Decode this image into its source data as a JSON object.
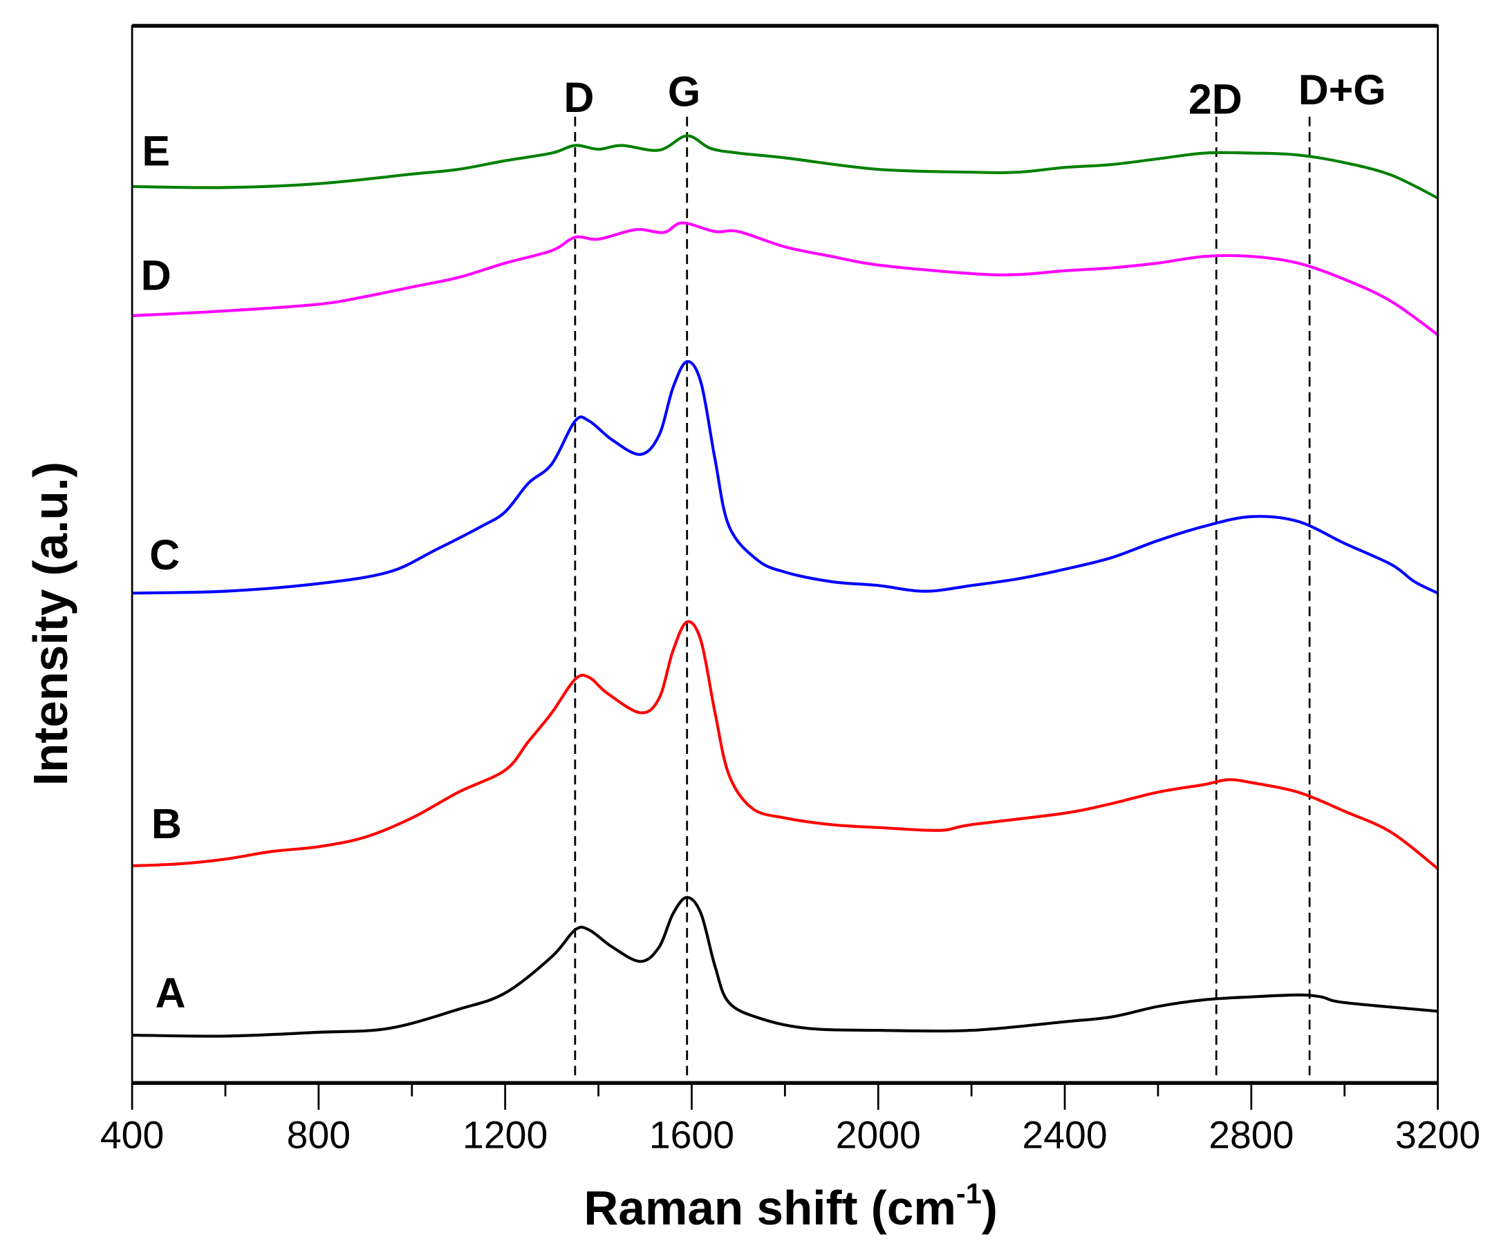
{
  "chart_data": {
    "type": "line",
    "title": "",
    "xlabel": "Raman shift (cm",
    "xlabel_sup": "-1",
    "xlabel_close": ")",
    "ylabel": "Intensity (a.u.)",
    "xlim": [
      400,
      3200
    ],
    "ylim": [
      0,
      1105
    ],
    "x_ticks": [
      400,
      800,
      1200,
      1600,
      2000,
      2400,
      2800,
      3200
    ],
    "x_tick_labels": [
      "400",
      "800",
      "1200",
      "1600",
      "2000",
      "2400",
      "2800",
      "3200"
    ],
    "y_ticks_shown": false,
    "grid": false,
    "legend": "none (curve labels at left)",
    "peak_lines": [
      {
        "label": "D",
        "x": 1350
      },
      {
        "label": "G",
        "x": 1590
      },
      {
        "label": "2D",
        "x": 2725
      },
      {
        "label": "D+G",
        "x": 2925
      }
    ],
    "series": [
      {
        "name": "A",
        "color": "#000000",
        "x": [
          400,
          600,
          800,
          950,
          1100,
          1200,
          1300,
          1350,
          1380,
          1430,
          1490,
          1530,
          1560,
          1590,
          1620,
          1650,
          1680,
          1750,
          1850,
          2000,
          2200,
          2400,
          2500,
          2600,
          2700,
          2800,
          2900,
          2950,
          3000,
          3200
        ],
        "y": [
          50,
          49,
          53,
          57,
          77,
          94,
          132,
          160,
          160,
          142,
          127,
          142,
          177,
          194,
          177,
          122,
          84,
          67,
          57,
          55,
          55,
          64,
          69,
          80,
          87,
          90,
          92,
          90,
          84,
          75
        ]
      },
      {
        "name": "B",
        "color": "#ff0000",
        "x": [
          400,
          500,
          600,
          700,
          800,
          900,
          1000,
          1100,
          1200,
          1250,
          1300,
          1350,
          1380,
          1420,
          1490,
          1530,
          1560,
          1590,
          1620,
          1650,
          1680,
          1730,
          1800,
          1900,
          2000,
          2130,
          2200,
          2400,
          2500,
          2600,
          2700,
          2750,
          2800,
          2900,
          3000,
          3100,
          3200
        ],
        "y": [
          227,
          229,
          234,
          242,
          247,
          257,
          277,
          304,
          327,
          357,
          387,
          422,
          424,
          407,
          387,
          402,
          452,
          482,
          462,
          387,
          322,
          287,
          277,
          270,
          267,
          264,
          270,
          282,
          292,
          304,
          312,
          317,
          314,
          304,
          284,
          262,
          224
        ]
      },
      {
        "name": "C",
        "color": "#0000ff",
        "x": [
          400,
          600,
          800,
          950,
          1050,
          1150,
          1200,
          1250,
          1300,
          1350,
          1380,
          1430,
          1490,
          1530,
          1560,
          1590,
          1620,
          1650,
          1680,
          1740,
          1800,
          1900,
          2000,
          2100,
          2200,
          2300,
          2400,
          2500,
          2600,
          2700,
          2800,
          2900,
          3000,
          3100,
          3150,
          3200
        ],
        "y": [
          512,
          514,
          522,
          534,
          557,
          582,
          597,
          627,
          647,
          692,
          692,
          672,
          657,
          677,
          727,
          754,
          732,
          652,
          582,
          547,
          534,
          524,
          520,
          514,
          520,
          527,
          537,
          549,
          567,
          582,
          592,
          587,
          564,
          542,
          524,
          512
        ]
      },
      {
        "name": "D",
        "color": "#ff00ff",
        "x": [
          400,
          600,
          800,
          900,
          1000,
          1100,
          1200,
          1300,
          1350,
          1400,
          1480,
          1540,
          1580,
          1650,
          1700,
          1800,
          1900,
          2000,
          2200,
          2300,
          2400,
          2500,
          2600,
          2700,
          2800,
          2900,
          3000,
          3100,
          3200
        ],
        "y": [
          802,
          807,
          814,
          822,
          832,
          842,
          857,
          870,
          884,
          882,
          892,
          889,
          899,
          890,
          890,
          874,
          864,
          855,
          846,
          845,
          849,
          852,
          857,
          864,
          864,
          857,
          840,
          817,
          782
        ]
      },
      {
        "name": "E",
        "color": "#008000",
        "x": [
          400,
          600,
          800,
          1000,
          1100,
          1200,
          1300,
          1350,
          1400,
          1450,
          1530,
          1590,
          1640,
          1700,
          1800,
          2000,
          2200,
          2300,
          2400,
          2500,
          2600,
          2700,
          2800,
          2900,
          3000,
          3100,
          3200
        ],
        "y": [
          937,
          936,
          940,
          950,
          955,
          964,
          972,
          980,
          976,
          980,
          975,
          990,
          977,
          972,
          967,
          955,
          952,
          952,
          957,
          960,
          966,
          972,
          972,
          970,
          962,
          949,
          925
        ]
      }
    ]
  }
}
